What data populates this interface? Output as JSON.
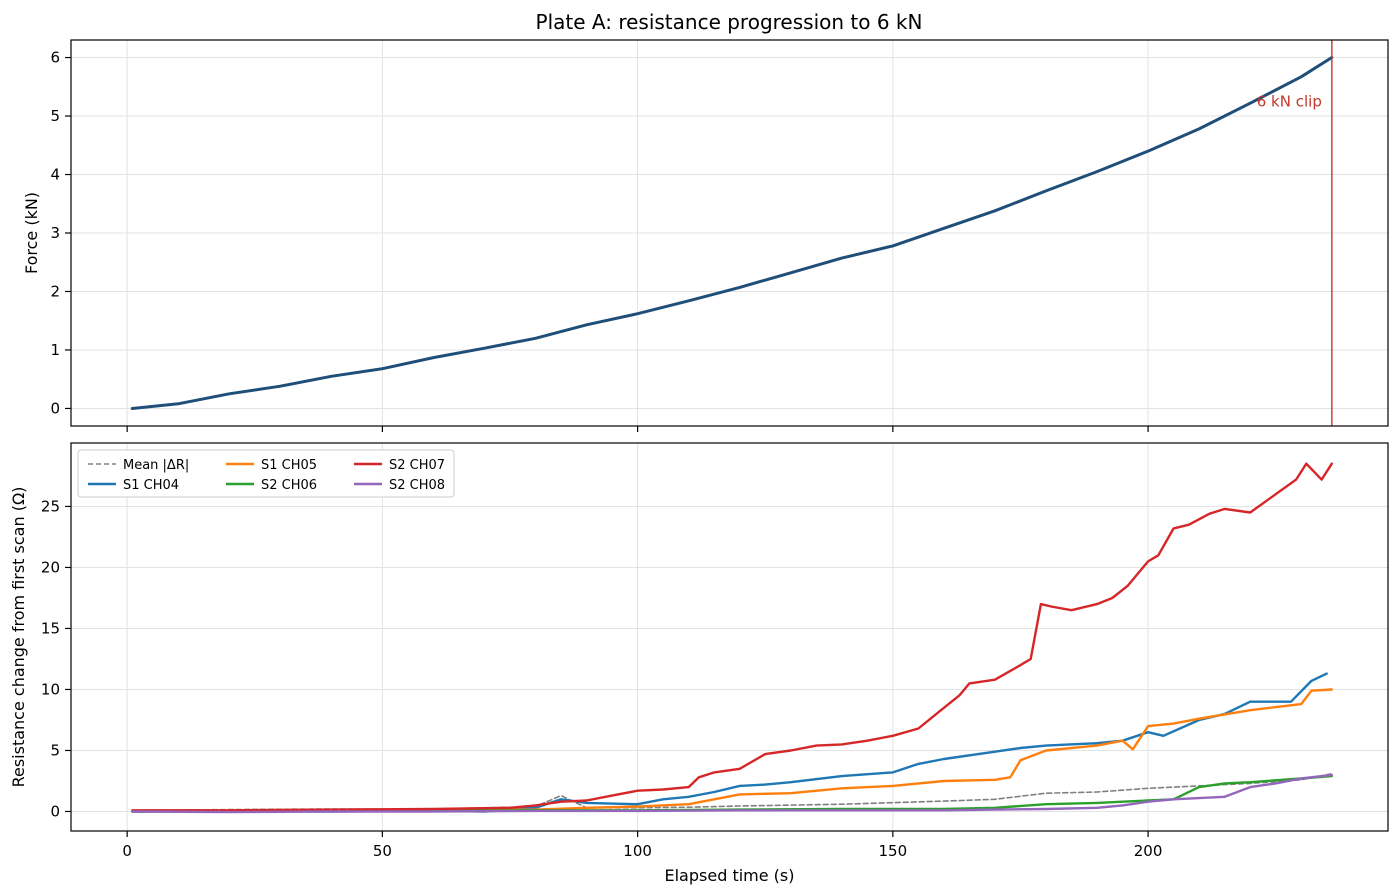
{
  "chart_data": [
    {
      "type": "line",
      "title": "Plate A: resistance progression to 6 kN",
      "xlabel": "",
      "ylabel": "Force (kN)",
      "xlim": [
        -11,
        247
      ],
      "ylim": [
        -0.3,
        6.3
      ],
      "xticks": [
        0,
        50,
        100,
        150,
        200
      ],
      "yticks": [
        0,
        1,
        2,
        3,
        4,
        5,
        6
      ],
      "grid": true,
      "series": [
        {
          "color": "#1f4e79",
          "x": [
            1,
            10,
            20,
            30,
            40,
            50,
            60,
            70,
            80,
            90,
            100,
            110,
            120,
            130,
            140,
            150,
            160,
            170,
            180,
            190,
            200,
            210,
            220,
            230,
            236
          ],
          "y": [
            0.0,
            0.08,
            0.25,
            0.38,
            0.55,
            0.68,
            0.87,
            1.03,
            1.2,
            1.43,
            1.62,
            1.84,
            2.07,
            2.32,
            2.57,
            2.78,
            3.08,
            3.38,
            3.72,
            4.05,
            4.4,
            4.78,
            5.22,
            5.67,
            6.0
          ]
        }
      ],
      "annotations": [
        {
          "text": "6 kN clip",
          "x": 236,
          "y": 5.25,
          "color": "#c0392b",
          "line": "vertical"
        }
      ]
    },
    {
      "type": "line",
      "title": "",
      "xlabel": "Elapsed time (s)",
      "ylabel": "Resistance change from first scan (Ω)",
      "xlim": [
        -11,
        247
      ],
      "ylim": [
        -1.6,
        30.2
      ],
      "xticks": [
        0,
        50,
        100,
        150,
        200
      ],
      "yticks": [
        0,
        5,
        10,
        15,
        20,
        25
      ],
      "grid": true,
      "legend": "upper-left",
      "series": [
        {
          "name": "Mean |ΔR|",
          "color": "#808080",
          "dashed": true,
          "x": [
            1,
            20,
            40,
            60,
            80,
            85,
            90,
            100,
            110,
            120,
            140,
            160,
            170,
            180,
            190,
            200,
            210,
            220,
            230,
            236
          ],
          "y": [
            0.1,
            0.15,
            0.2,
            0.2,
            0.4,
            1.3,
            0.3,
            0.3,
            0.35,
            0.45,
            0.6,
            0.85,
            1.0,
            1.5,
            1.6,
            1.9,
            2.1,
            2.3,
            2.6,
            3.1
          ]
        },
        {
          "name": "S1 CH04",
          "color": "#1f77b4",
          "x": [
            1,
            20,
            40,
            60,
            70,
            80,
            85,
            90,
            100,
            105,
            110,
            115,
            120,
            125,
            130,
            140,
            150,
            155,
            160,
            170,
            175,
            180,
            190,
            195,
            200,
            203,
            210,
            215,
            220,
            228,
            232,
            235
          ],
          "y": [
            0.0,
            0.05,
            0.0,
            0.05,
            0.0,
            0.3,
            1.0,
            0.7,
            0.6,
            1.0,
            1.2,
            1.6,
            2.1,
            2.2,
            2.4,
            2.9,
            3.2,
            3.9,
            4.3,
            4.9,
            5.2,
            5.4,
            5.6,
            5.8,
            6.5,
            6.2,
            7.5,
            8.0,
            9.0,
            9.0,
            10.7,
            11.3
          ]
        },
        {
          "name": "S1 CH05",
          "color": "#ff7f0e",
          "x": [
            1,
            20,
            40,
            60,
            80,
            90,
            100,
            110,
            115,
            120,
            130,
            140,
            150,
            160,
            170,
            173,
            175,
            180,
            190,
            195,
            197,
            200,
            205,
            210,
            220,
            230,
            232,
            236
          ],
          "y": [
            0.0,
            0.05,
            0.1,
            0.1,
            0.15,
            0.3,
            0.4,
            0.6,
            1.0,
            1.4,
            1.5,
            1.9,
            2.1,
            2.5,
            2.6,
            2.8,
            4.2,
            5.0,
            5.4,
            5.8,
            5.1,
            7.0,
            7.2,
            7.6,
            8.3,
            8.8,
            9.9,
            10.0
          ]
        },
        {
          "name": "S2 CH06",
          "color": "#2ca02c",
          "x": [
            1,
            20,
            40,
            60,
            80,
            100,
            120,
            140,
            160,
            170,
            180,
            190,
            195,
            200,
            205,
            210,
            215,
            220,
            230,
            236
          ],
          "y": [
            0.0,
            0.05,
            0.05,
            0.05,
            0.1,
            0.1,
            0.15,
            0.2,
            0.2,
            0.3,
            0.6,
            0.7,
            0.8,
            0.9,
            1.0,
            2.0,
            2.3,
            2.4,
            2.7,
            2.9
          ]
        },
        {
          "name": "S2 CH07",
          "color": "#d62728",
          "x": [
            1,
            20,
            40,
            60,
            75,
            80,
            85,
            90,
            95,
            100,
            105,
            110,
            112,
            115,
            120,
            125,
            130,
            135,
            140,
            145,
            150,
            155,
            160,
            163,
            165,
            170,
            175,
            177,
            179,
            181,
            185,
            190,
            193,
            196,
            200,
            202,
            205,
            208,
            212,
            215,
            220,
            225,
            229,
            231,
            234,
            236
          ],
          "y": [
            0.1,
            0.1,
            0.15,
            0.2,
            0.3,
            0.5,
            0.8,
            0.9,
            1.3,
            1.7,
            1.8,
            2.0,
            2.8,
            3.2,
            3.5,
            4.7,
            5.0,
            5.4,
            5.5,
            5.8,
            6.2,
            6.8,
            8.5,
            9.5,
            10.5,
            10.8,
            12.0,
            12.5,
            17.0,
            16.8,
            16.5,
            17.0,
            17.5,
            18.5,
            20.5,
            21.0,
            23.2,
            23.5,
            24.4,
            24.8,
            24.5,
            26.0,
            27.2,
            28.5,
            27.2,
            28.5
          ]
        },
        {
          "name": "S2 CH08",
          "color": "#9467bd",
          "x": [
            1,
            20,
            40,
            60,
            80,
            100,
            120,
            140,
            160,
            170,
            180,
            190,
            195,
            200,
            205,
            210,
            215,
            220,
            225,
            230,
            236
          ],
          "y": [
            0.0,
            -0.05,
            0.0,
            0.0,
            0.05,
            0.05,
            0.1,
            0.1,
            0.1,
            0.15,
            0.2,
            0.3,
            0.5,
            0.8,
            1.0,
            1.1,
            1.2,
            2.0,
            2.3,
            2.7,
            3.0
          ]
        }
      ]
    }
  ]
}
